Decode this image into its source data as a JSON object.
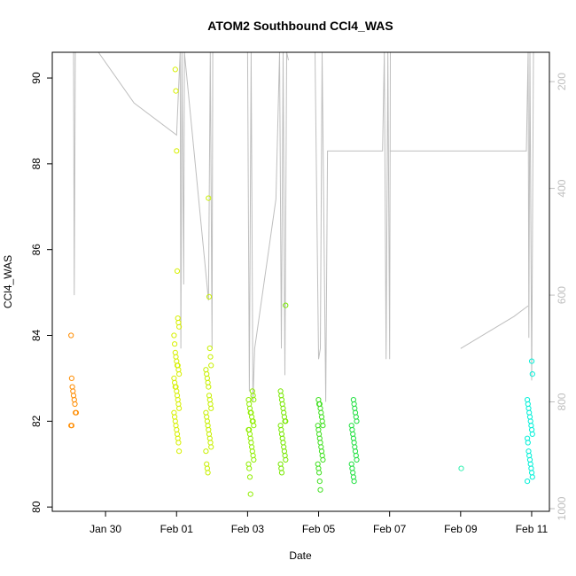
{
  "chart_data": {
    "type": "scatter",
    "title": "ATOM2 Southbound CCl4_WAS",
    "xlabel": "Date",
    "ylabel": "CCl4_WAS",
    "x_ticks": [
      "Jan 30",
      "Feb 01",
      "Feb 03",
      "Feb 05",
      "Feb 07",
      "Feb 09",
      "Feb 11"
    ],
    "x_tick_days": [
      30,
      32,
      34,
      36,
      38,
      40,
      42
    ],
    "xlim_days": [
      28.5,
      42.5
    ],
    "y_ticks": [
      80,
      82,
      84,
      86,
      88,
      90
    ],
    "ylim": [
      79.9,
      90.6
    ],
    "y2_ticks": [
      200,
      400,
      600,
      800,
      1000
    ],
    "y2lim": [
      1005,
      145
    ],
    "y2_inverted": true,
    "y2_color": "#bebebe",
    "grid": false,
    "legend": "none",
    "point_marker": "open-circle",
    "color_by_date": true,
    "clusters": [
      {
        "day": 29.1,
        "color": "#ff8c00",
        "values": [
          84.0,
          83.0,
          82.8,
          82.7,
          82.6,
          82.5,
          82.4,
          82.2,
          82.2,
          81.9,
          81.9
        ]
      },
      {
        "day": 32.0,
        "color": "#d7f000",
        "values": [
          90.2,
          89.7,
          88.3,
          85.5,
          84.4,
          84.3,
          84.2,
          84.0,
          83.8,
          83.6,
          83.5,
          83.4,
          83.3,
          83.3,
          83.2,
          83.1,
          83.0,
          82.9,
          82.8,
          82.8,
          82.7,
          82.6,
          82.5,
          82.4,
          82.3,
          82.2,
          82.1,
          82.0,
          81.9,
          81.8,
          81.7,
          81.6,
          81.5,
          81.3
        ]
      },
      {
        "day": 32.9,
        "color": "#c8f000",
        "values": [
          87.2,
          84.9,
          83.7,
          83.5,
          83.3,
          83.2,
          83.1,
          83.0,
          82.9,
          82.8,
          82.6,
          82.5,
          82.4,
          82.3,
          82.2,
          82.1,
          82.0,
          81.9,
          81.8,
          81.7,
          81.6,
          81.5,
          81.4,
          81.3,
          81.0,
          80.9,
          80.8
        ]
      },
      {
        "day": 34.1,
        "color": "#90ee00",
        "values": [
          82.7,
          82.6,
          82.5,
          82.5,
          82.4,
          82.3,
          82.2,
          82.2,
          82.1,
          82.0,
          82.0,
          81.9,
          81.8,
          81.8,
          81.7,
          81.6,
          81.5,
          81.4,
          81.3,
          81.2,
          81.1,
          81.0,
          80.9,
          80.7,
          80.3
        ]
      },
      {
        "day": 35.0,
        "color": "#78e800",
        "values": [
          84.7,
          82.7,
          82.6,
          82.5,
          82.4,
          82.3,
          82.2,
          82.1,
          82.0,
          82.0,
          81.9,
          81.8,
          81.7,
          81.6,
          81.5,
          81.4,
          81.3,
          81.2,
          81.1,
          81.0,
          80.9,
          80.8
        ]
      },
      {
        "day": 36.05,
        "color": "#40e020",
        "values": [
          82.5,
          82.4,
          82.4,
          82.3,
          82.2,
          82.1,
          82.0,
          81.9,
          81.9,
          81.8,
          81.7,
          81.6,
          81.5,
          81.4,
          81.3,
          81.2,
          81.1,
          81.0,
          80.9,
          80.8,
          80.6,
          80.4
        ]
      },
      {
        "day": 37.0,
        "color": "#20e040",
        "values": [
          82.5,
          82.4,
          82.3,
          82.2,
          82.1,
          82.0,
          81.9,
          81.8,
          81.7,
          81.6,
          81.5,
          81.4,
          81.3,
          81.2,
          81.1,
          81.0,
          80.9,
          80.8,
          80.7,
          80.6
        ]
      },
      {
        "day": 40.0,
        "color": "#30f0b0",
        "values": [
          80.9
        ]
      },
      {
        "day": 41.95,
        "color": "#00f0d8",
        "values": [
          83.4,
          83.1,
          82.5,
          82.4,
          82.3,
          82.2,
          82.1,
          82.0,
          81.9,
          81.8,
          81.7,
          81.6,
          81.5,
          81.3,
          81.2,
          81.1,
          81.0,
          80.9,
          80.8,
          80.7,
          80.6
        ]
      }
    ],
    "secondary_line": {
      "color": "#bebebe",
      "segments": [
        [
          [
            29.1,
            145
          ],
          [
            29.12,
            600
          ],
          [
            29.15,
            145
          ]
        ],
        [
          [
            29.8,
            145
          ],
          [
            30.8,
            240
          ],
          [
            32.0,
            300
          ],
          [
            32.1,
            145
          ],
          [
            32.12,
            700
          ],
          [
            32.15,
            145
          ],
          [
            32.2,
            580
          ],
          [
            32.22,
            145
          ],
          [
            32.9,
            610
          ],
          [
            32.95,
            145
          ],
          [
            33.0,
            700
          ],
          [
            33.02,
            145
          ]
        ],
        [
          [
            33.8,
            145
          ],
          [
            34.0,
            145
          ],
          [
            34.05,
            780
          ],
          [
            34.1,
            145
          ],
          [
            34.15,
            800
          ],
          [
            34.2,
            700
          ],
          [
            34.8,
            420
          ],
          [
            34.9,
            145
          ],
          [
            34.95,
            700
          ],
          [
            35.0,
            145
          ],
          [
            35.05,
            750
          ],
          [
            35.1,
            145
          ],
          [
            35.15,
            160
          ]
        ],
        [
          [
            35.9,
            145
          ],
          [
            36.0,
            720
          ],
          [
            36.05,
            700
          ],
          [
            36.1,
            145
          ],
          [
            36.2,
            800
          ],
          [
            36.25,
            330
          ],
          [
            37.8,
            330
          ],
          [
            37.85,
            145
          ],
          [
            37.9,
            720
          ],
          [
            37.95,
            145
          ],
          [
            38.0,
            720
          ],
          [
            38.02,
            145
          ]
        ],
        [
          [
            38.0,
            330
          ],
          [
            41.85,
            330
          ],
          [
            41.9,
            145
          ],
          [
            41.92,
            680
          ],
          [
            41.95,
            145
          ],
          [
            42.0,
            760
          ],
          [
            42.05,
            145
          ]
        ],
        [
          [
            40.0,
            700
          ],
          [
            41.5,
            640
          ],
          [
            41.9,
            620
          ]
        ]
      ]
    }
  }
}
